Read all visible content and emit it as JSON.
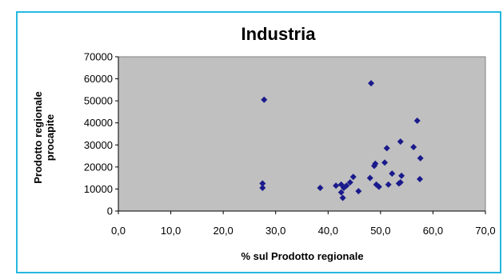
{
  "chart_data": {
    "type": "scatter",
    "title": "Industria",
    "xlabel": "% sul Prodotto regionale",
    "ylabel_lines": [
      "Prodotto regionale",
      "procapite"
    ],
    "xlim": [
      0,
      70
    ],
    "ylim": [
      0,
      70000
    ],
    "x_ticks": [
      "0,0",
      "10,0",
      "20,0",
      "30,0",
      "40,0",
      "50,0",
      "60,0",
      "70,0"
    ],
    "y_ticks": [
      "0",
      "10000",
      "20000",
      "30000",
      "40000",
      "50000",
      "60000",
      "70000"
    ],
    "grid": false,
    "legend": "none",
    "marker_color": "#1a1a8c",
    "plot_background": "#c0c0c0",
    "series": [
      {
        "points": [
          [
            27.5,
            12500
          ],
          [
            27.5,
            10500
          ],
          [
            27.8,
            50500
          ],
          [
            38.5,
            10500
          ],
          [
            41.5,
            11500
          ],
          [
            42.5,
            8500
          ],
          [
            42.5,
            12000
          ],
          [
            42.8,
            6000
          ],
          [
            43.0,
            10500
          ],
          [
            43.5,
            11500
          ],
          [
            44.2,
            13000
          ],
          [
            44.8,
            15500
          ],
          [
            45.8,
            9000
          ],
          [
            48.0,
            15000
          ],
          [
            48.2,
            58000
          ],
          [
            48.8,
            20500
          ],
          [
            49.0,
            21500
          ],
          [
            49.2,
            12000
          ],
          [
            49.7,
            11000
          ],
          [
            50.8,
            22000
          ],
          [
            51.2,
            28500
          ],
          [
            51.5,
            12000
          ],
          [
            52.2,
            17000
          ],
          [
            53.5,
            12500
          ],
          [
            53.8,
            31500
          ],
          [
            53.8,
            13000
          ],
          [
            54.0,
            16000
          ],
          [
            56.3,
            29000
          ],
          [
            57.0,
            41000
          ],
          [
            57.5,
            14500
          ],
          [
            57.6,
            24000
          ]
        ]
      }
    ]
  }
}
